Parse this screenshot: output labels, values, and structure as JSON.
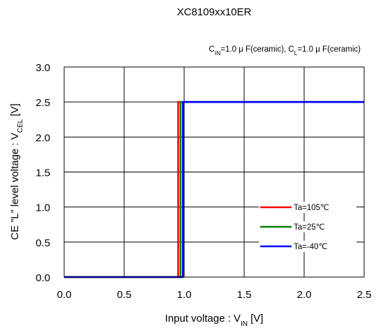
{
  "chart_data": {
    "type": "line",
    "title": "XC8109xx10ER",
    "subtitle": {
      "parts": [
        {
          "t": "C"
        },
        {
          "t": "IN",
          "sub": true
        },
        {
          "t": "=1.0 μ F(ceramic), C"
        },
        {
          "t": "L",
          "sub": true
        },
        {
          "t": "=1.0 μ F(ceramic)"
        }
      ]
    },
    "xlabel": {
      "parts": [
        {
          "t": "Input voltage : V"
        },
        {
          "t": "IN",
          "sub": true
        },
        {
          "t": " [V]"
        }
      ]
    },
    "ylabel": {
      "parts": [
        {
          "t": "CE ”L” level voltage : V"
        },
        {
          "t": "CEL",
          "sub": true
        },
        {
          "t": " [V]"
        }
      ]
    },
    "xlim": [
      0.0,
      2.5
    ],
    "ylim": [
      0.0,
      3.0
    ],
    "xticks": [
      "0.0",
      "0.5",
      "1.0",
      "1.5",
      "2.0",
      "2.5"
    ],
    "yticks": [
      "0.0",
      "0.5",
      "1.0",
      "1.5",
      "2.0",
      "2.5",
      "3.0"
    ],
    "grid": true,
    "legend_position": "lower-right",
    "series": [
      {
        "name": "Ta=105℃",
        "color": "#ff0000",
        "x": [
          0.0,
          0.95,
          0.95,
          2.5
        ],
        "y": [
          0.0,
          0.0,
          2.5,
          2.5
        ]
      },
      {
        "name": "Ta=25℃",
        "color": "#008000",
        "x": [
          0.0,
          0.97,
          0.97,
          2.5
        ],
        "y": [
          0.0,
          0.0,
          2.5,
          2.5
        ]
      },
      {
        "name": "Ta=-40℃",
        "color": "#0000ff",
        "x": [
          0.0,
          0.99,
          0.99,
          2.5
        ],
        "y": [
          0.0,
          0.0,
          2.5,
          2.5
        ]
      }
    ]
  }
}
